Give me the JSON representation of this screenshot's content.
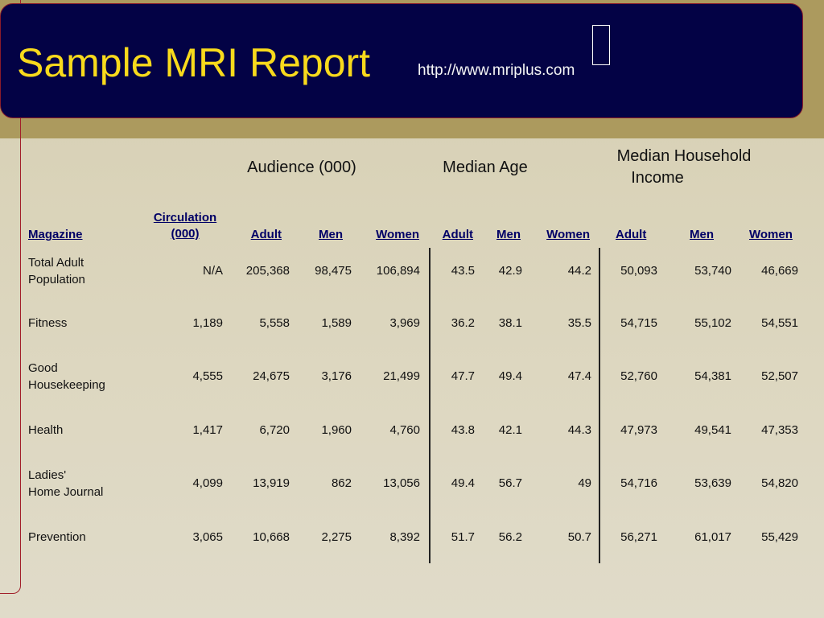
{
  "title": "Sample MRI Report",
  "url": "http://www.mriplus.com",
  "group_headers": {
    "audience": "Audience (000)",
    "median_age": "Median Age",
    "income_line1": "Median Household",
    "income_line2": "Income"
  },
  "column_headers": {
    "magazine": "Magazine",
    "circulation_line1": "Circulation",
    "circulation_line2": "(000)",
    "aud_adult": "Adult",
    "aud_men": "Men",
    "aud_women": "Women",
    "age_adult": "Adult",
    "age_men": "Men",
    "age_women": "Women",
    "inc_adult": "Adult",
    "inc_men": "Men",
    "inc_women": "Women"
  },
  "rows": [
    {
      "name1": "Total Adult",
      "name2": "Population",
      "circ": "N/A",
      "aud_adult": "205,368",
      "aud_men": "98,475",
      "aud_women": "106,894",
      "age_adult": "43.5",
      "age_men": "42.9",
      "age_women": "44.2",
      "inc_adult": "50,093",
      "inc_men": "53,740",
      "inc_women": "46,669"
    },
    {
      "name1": "Fitness",
      "name2": "",
      "circ": "1,189",
      "aud_adult": "5,558",
      "aud_men": "1,589",
      "aud_women": "3,969",
      "age_adult": "36.2",
      "age_men": "38.1",
      "age_women": "35.5",
      "inc_adult": "54,715",
      "inc_men": "55,102",
      "inc_women": "54,551"
    },
    {
      "name1": "Good",
      "name2": "Housekeeping",
      "circ": "4,555",
      "aud_adult": "24,675",
      "aud_men": "3,176",
      "aud_women": "21,499",
      "age_adult": "47.7",
      "age_men": "49.4",
      "age_women": "47.4",
      "inc_adult": "52,760",
      "inc_men": "54,381",
      "inc_women": "52,507"
    },
    {
      "name1": "Health",
      "name2": "",
      "circ": "1,417",
      "aud_adult": "6,720",
      "aud_men": "1,960",
      "aud_women": "4,760",
      "age_adult": "43.8",
      "age_men": "42.1",
      "age_women": "44.3",
      "inc_adult": "47,973",
      "inc_men": "49,541",
      "inc_women": "47,353"
    },
    {
      "name1": "Ladies'",
      "name2": "Home Journal",
      "circ": "4,099",
      "aud_adult": "13,919",
      "aud_men": "862",
      "aud_women": "13,056",
      "age_adult": "49.4",
      "age_men": "56.7",
      "age_women": "49",
      "inc_adult": "54,716",
      "inc_men": "53,639",
      "inc_women": "54,820"
    },
    {
      "name1": "Prevention",
      "name2": "",
      "circ": "3,065",
      "aud_adult": "10,668",
      "aud_men": "2,275",
      "aud_women": "8,392",
      "age_adult": "51.7",
      "age_men": "56.2",
      "age_women": "50.7",
      "inc_adult": "56,271",
      "inc_men": "61,017",
      "inc_women": "55,429"
    }
  ]
}
